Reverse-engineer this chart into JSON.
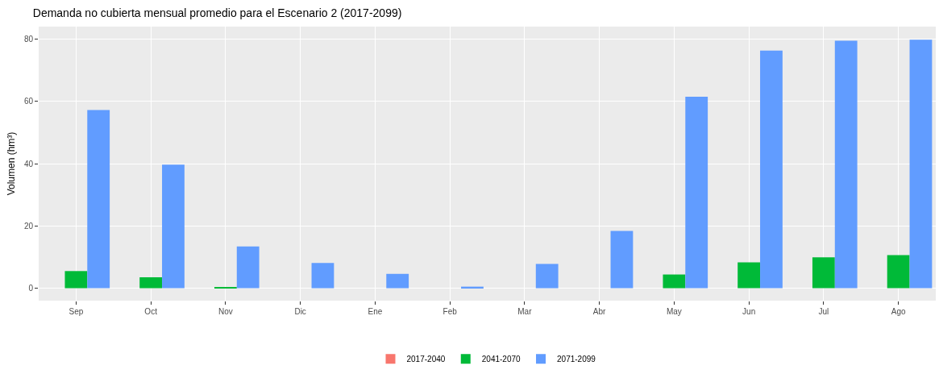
{
  "chart_data": {
    "type": "bar",
    "title": "Demanda no cubierta mensual promedio para el Escenario 2 (2017-2099)",
    "ylabel": "Volumen (hm³)",
    "categories": [
      "Sep",
      "Oct",
      "Nov",
      "Dic",
      "Ene",
      "Feb",
      "Mar",
      "Abr",
      "May",
      "Jun",
      "Jul",
      "Ago"
    ],
    "series": [
      {
        "name": "2017-2040",
        "color": "#f8766d",
        "values": [
          0,
          0,
          0,
          0,
          0,
          0,
          0,
          0,
          0,
          0,
          0,
          0
        ]
      },
      {
        "name": "2041-2070",
        "color": "#00ba38",
        "values": [
          5.5,
          3.5,
          0.3,
          0,
          0,
          0,
          0,
          0,
          4.4,
          8.3,
          9.9,
          10.6
        ]
      },
      {
        "name": "2071-2099",
        "color": "#619cff",
        "values": [
          57.2,
          39.7,
          13.4,
          8.1,
          4.6,
          0.5,
          7.8,
          18.4,
          61.5,
          76.3,
          79.5,
          79.8
        ]
      }
    ],
    "ylim": [
      -4,
      84
    ],
    "yticks": [
      0,
      20,
      40,
      60,
      80
    ],
    "grid": true,
    "legend": "bottom"
  }
}
